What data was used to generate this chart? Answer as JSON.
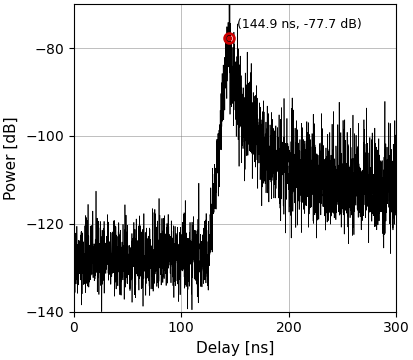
{
  "xlabel": "Delay [ns]",
  "ylabel": "Power [dB]",
  "xlim": [
    0,
    300
  ],
  "ylim": [
    -140,
    -70
  ],
  "yticks": [
    -140,
    -120,
    -100,
    -80
  ],
  "xticks": [
    0,
    100,
    200,
    300
  ],
  "peak_x": 144.9,
  "peak_y": -77.7,
  "annotation_label": "(144.9 ns, -77.7 dB)",
  "line_color": "#000000",
  "marker_color": "#cc0000",
  "noise_floor_pre": -128,
  "noise_floor_post": -112,
  "seed": 42,
  "n_points": 3000,
  "figsize": [
    4.14,
    3.6
  ],
  "dpi": 100
}
